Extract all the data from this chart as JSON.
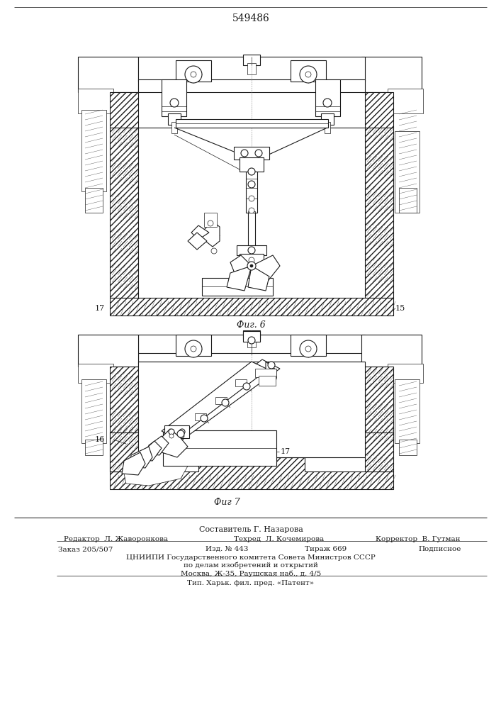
{
  "patent_number": "549486",
  "fig6_caption": "Фиг. 6",
  "fig7_caption": "Фиг 7",
  "label_15": "15",
  "label_16": "16",
  "label_17_fig6": "17",
  "label_17_fig7": "17",
  "footer_line1": "Составитель Г. Назарова",
  "footer_line2_left": "Редактор  Л. Жаворонкова",
  "footer_line2_mid": "Техред  Л. Кочемирова",
  "footer_line2_right": "Корректор  В. Гутман",
  "footer_line3_left": "Заказ 205/507",
  "footer_line3_mid": "Изд. № 443",
  "footer_line3_midr": "Тираж 669",
  "footer_line3_right": "Подписное",
  "footer_line4": "ЦНИИПИ Государственного комитета Совета Министров СССР",
  "footer_line5": "по делам изобретений и открытий",
  "footer_line6": "Москва, Ж-35, Раушская наб., д. 4/5",
  "footer_line7": "Тип. Харьк. фил. пред. «Патент»",
  "bg_color": "#ffffff",
  "dc": "#1a1a1a"
}
